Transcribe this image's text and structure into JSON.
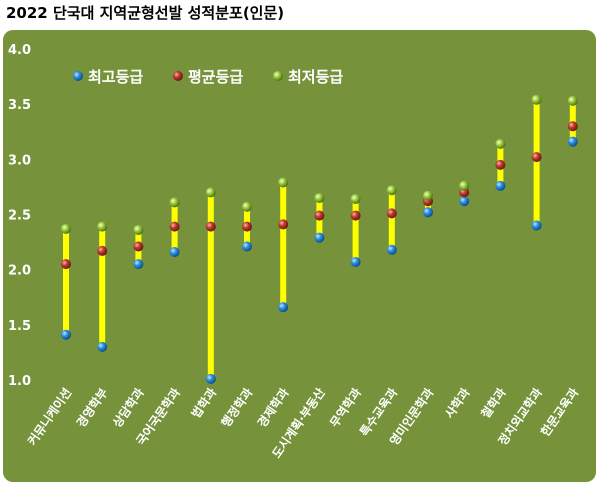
{
  "title": "2022 단국대 지역균형선발 성적분포(인문)",
  "chart_data": {
    "type": "range",
    "title": "2022 단국대 지역균형선발 성적분포(인문)",
    "xlabel": "",
    "ylabel": "",
    "ylim": [
      1.0,
      4.0
    ],
    "yticks": [
      "1.0",
      "1.5",
      "2.0",
      "2.5",
      "3.0",
      "3.5",
      "4.0"
    ],
    "grid": false,
    "legend_position": "top-left",
    "categories": [
      "커뮤니케이션",
      "경영학부",
      "상담학과",
      "국어국문학과",
      "법학과",
      "행정학과",
      "경제학과",
      "도시계획·부동산",
      "무역학과",
      "특수교육과",
      "영미인문학과",
      "사학과",
      "철학과",
      "정치외교학과",
      "한문교육과"
    ],
    "series": [
      {
        "name": "최고등급",
        "color": "#2f8fdc",
        "values": [
          1.41,
          1.3,
          2.05,
          2.16,
          1.01,
          2.21,
          1.66,
          2.29,
          2.07,
          2.18,
          2.52,
          2.62,
          2.76,
          2.4,
          3.16
        ]
      },
      {
        "name": "평균등급",
        "color": "#c0392b",
        "values": [
          2.05,
          2.17,
          2.21,
          2.39,
          2.39,
          2.39,
          2.41,
          2.49,
          2.49,
          2.51,
          2.62,
          2.7,
          2.95,
          3.02,
          3.3
        ]
      },
      {
        "name": "최저등급",
        "color": "#9ccc3c",
        "values": [
          2.37,
          2.39,
          2.36,
          2.61,
          2.7,
          2.57,
          2.79,
          2.65,
          2.64,
          2.72,
          2.67,
          2.76,
          3.14,
          3.54,
          3.53
        ]
      }
    ],
    "colors": {
      "plot_background": "#76933c",
      "range_line": "#ffff00",
      "text": "#ffffff"
    }
  }
}
